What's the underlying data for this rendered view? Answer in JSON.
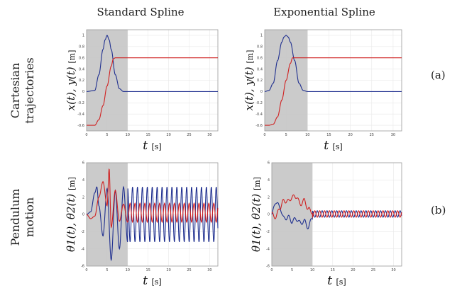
{
  "columns": [
    "Standard Spline",
    "Exponential Spline"
  ],
  "rows": [
    {
      "label_line1": "Cartesian",
      "label_line2": "trajectories",
      "tag": "(a)"
    },
    {
      "label_line1": "Pendulum",
      "label_line2": "motion",
      "tag": "(b)"
    }
  ],
  "colors": {
    "x_series": "#1f2f8f",
    "y_series": "#d02020",
    "shade": "#c8c8c8",
    "grid": "#e8e8e8"
  },
  "chart_data": [
    {
      "type": "line",
      "panel": "Cartesian trajectories / Standard Spline",
      "xlabel_main": "t",
      "xlabel_unit": "[s]",
      "ylabel_main": "x(t),  y(t)",
      "ylabel_unit": "[m]",
      "xlim": [
        0,
        32
      ],
      "ylim": [
        -0.7,
        1.1
      ],
      "xticks": [
        0,
        5,
        10,
        15,
        20,
        25,
        30
      ],
      "yticks": [
        -0.6,
        -0.4,
        -0.2,
        0,
        0.2,
        0.4,
        0.6,
        0.8,
        1
      ],
      "shaded_interval": [
        0,
        10
      ],
      "series": [
        {
          "label": "x(t)",
          "color": "#1f2f8f",
          "x": [
            0,
            2,
            3,
            4,
            4.5,
            5,
            5.5,
            6,
            7,
            8,
            9,
            10,
            11,
            32
          ],
          "y": [
            0,
            0.02,
            0.3,
            0.75,
            0.92,
            1.0,
            0.92,
            0.75,
            0.3,
            0.05,
            0.0,
            0.0,
            0.0,
            0.0
          ]
        },
        {
          "label": "y(t)",
          "color": "#d02020",
          "x": [
            0,
            2,
            3,
            4,
            5,
            6,
            6.5,
            7,
            8,
            10,
            32
          ],
          "y": [
            -0.6,
            -0.6,
            -0.5,
            -0.25,
            0.1,
            0.45,
            0.58,
            0.6,
            0.6,
            0.6,
            0.6
          ]
        }
      ]
    },
    {
      "type": "line",
      "panel": "Cartesian trajectories / Exponential Spline",
      "xlabel_main": "t",
      "xlabel_unit": "[s]",
      "ylabel_main": "x(t),  y(t)",
      "ylabel_unit": "[m]",
      "xlim": [
        0,
        32
      ],
      "ylim": [
        -0.7,
        1.1
      ],
      "xticks": [
        0,
        5,
        10,
        15,
        20,
        25,
        30
      ],
      "yticks": [
        -0.6,
        -0.4,
        -0.2,
        0,
        0.2,
        0.4,
        0.6,
        0.8,
        1
      ],
      "shaded_interval": [
        0,
        10
      ],
      "series": [
        {
          "label": "x(t)",
          "color": "#1f2f8f",
          "x": [
            0,
            1,
            2,
            3,
            4,
            4.5,
            5,
            5.5,
            6,
            7,
            8,
            9,
            10,
            32
          ],
          "y": [
            0,
            0.02,
            0.15,
            0.55,
            0.88,
            0.97,
            1.0,
            0.97,
            0.88,
            0.55,
            0.15,
            0.02,
            0,
            0
          ]
        },
        {
          "label": "y(t)",
          "color": "#d02020",
          "x": [
            0,
            1,
            2,
            3,
            4,
            5,
            6,
            6.5,
            7,
            8,
            10,
            32
          ],
          "y": [
            -0.6,
            -0.6,
            -0.58,
            -0.45,
            -0.15,
            0.2,
            0.5,
            0.6,
            0.6,
            0.6,
            0.6,
            0.6
          ]
        }
      ]
    },
    {
      "type": "line",
      "panel": "Pendulum motion / Standard Spline",
      "xlabel_main": "t",
      "xlabel_unit": "[s]",
      "ylabel_main": "θ1(t),  θ2(t)",
      "ylabel_unit": "[m]",
      "xlim": [
        0,
        32
      ],
      "ylim": [
        -6,
        6
      ],
      "xticks": [
        0,
        5,
        10,
        15,
        20,
        25,
        30
      ],
      "yticks": [
        -6,
        -4,
        -2,
        0,
        2,
        4,
        6
      ],
      "shaded_interval": [
        0,
        10
      ],
      "series": [
        {
          "label": "θ1(t)",
          "color": "#1f2f8f",
          "model": "standard_theta1",
          "x": [
            0,
            1,
            2,
            2.5,
            3,
            4,
            5,
            6,
            7,
            8,
            9,
            10,
            32
          ],
          "y": [
            0,
            0.3,
            2.5,
            3.2,
            1.0,
            -2.5,
            3.0,
            -5.3,
            2.8,
            -4.0,
            3.2,
            -3.2,
            -2.2
          ]
        },
        {
          "label": "θ2(t)",
          "color": "#d02020",
          "model": "standard_theta2",
          "x": [
            0,
            1,
            2,
            3,
            4,
            5,
            5.5,
            6,
            7,
            8,
            9,
            10,
            32
          ],
          "y": [
            0,
            -0.5,
            -0.2,
            2.0,
            3.8,
            1.0,
            5.3,
            -1.5,
            2.8,
            -0.8,
            1.2,
            -0.9,
            1.0
          ]
        }
      ]
    },
    {
      "type": "line",
      "panel": "Pendulum motion / Exponential Spline",
      "xlabel_main": "t",
      "xlabel_unit": "[s]",
      "ylabel_main": "θ1(t),  θ2(t)",
      "ylabel_unit": "[m]",
      "xlim": [
        0,
        32
      ],
      "ylim": [
        -6,
        6
      ],
      "xticks": [
        0,
        5,
        10,
        15,
        20,
        25,
        30
      ],
      "yticks": [
        -6,
        -4,
        -2,
        0,
        2,
        4,
        6
      ],
      "shaded_interval": [
        0,
        10
      ],
      "series": [
        {
          "label": "θ1(t)",
          "color": "#1f2f8f",
          "model": "exponential_theta1",
          "x": [
            0,
            1,
            2,
            3,
            4,
            5,
            6,
            7,
            8,
            9,
            10,
            32
          ],
          "y": [
            0,
            1.5,
            0.8,
            -0.5,
            -0.3,
            -0.8,
            -0.5,
            -1.0,
            -0.8,
            -1.5,
            -0.3,
            -0.4
          ]
        },
        {
          "label": "θ2(t)",
          "color": "#d02020",
          "model": "exponential_theta2",
          "x": [
            0,
            1,
            2,
            3,
            4,
            5,
            6,
            7,
            8,
            9,
            10,
            32
          ],
          "y": [
            0,
            -0.3,
            0.8,
            1.6,
            1.5,
            2.0,
            2.1,
            1.2,
            1.6,
            0.6,
            0.3,
            0.4
          ]
        }
      ]
    }
  ]
}
